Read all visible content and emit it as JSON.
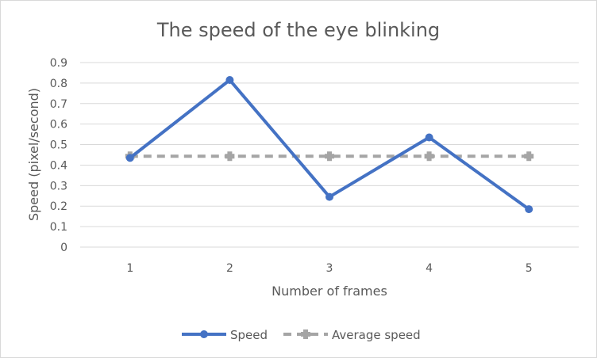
{
  "chart_data": {
    "type": "line",
    "title": "The speed of the eye blinking",
    "xlabel": "Number of frames",
    "ylabel": "Speed (pixel/second)",
    "x": [
      1,
      2,
      3,
      4,
      5
    ],
    "ylim": [
      0,
      0.9
    ],
    "yticks": [
      0,
      0.1,
      0.2,
      0.3,
      0.4,
      0.5,
      0.6,
      0.7,
      0.8,
      0.9
    ],
    "grid": true,
    "legend": "bottom",
    "series": [
      {
        "name": "Speed",
        "values": [
          0.435,
          0.815,
          0.245,
          0.535,
          0.185
        ],
        "color": "#4472c4",
        "style": "solid"
      },
      {
        "name": "Average speed",
        "values": [
          0.443,
          0.443,
          0.443,
          0.443,
          0.443
        ],
        "color": "#a5a5a5",
        "style": "dashed"
      }
    ]
  }
}
